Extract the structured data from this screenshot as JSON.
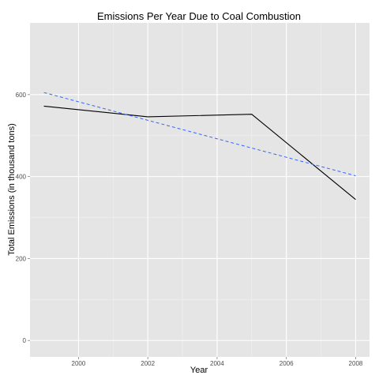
{
  "chart_data": {
    "type": "line",
    "title": "Emissions Per Year Due to Coal Combustion",
    "xlabel": "Year",
    "ylabel": "Total Emissions (in thousand tons)",
    "xlim": [
      1998.6,
      2008.4
    ],
    "ylim": [
      -40,
      775
    ],
    "x_ticks": [
      2000,
      2002,
      2004,
      2006,
      2008
    ],
    "y_ticks": [
      0,
      200,
      400,
      600
    ],
    "grid": true,
    "colors": {
      "panel_bg": "#e5e5e5",
      "grid_major": "#ffffff",
      "grid_minor": "#f2f2f2",
      "series_line": "#000000",
      "trend_line": "#3366ff"
    },
    "series": [
      {
        "x": [
          1999,
          2002,
          2005,
          2008
        ],
        "y": [
          572,
          546,
          552,
          344
        ]
      },
      {
        "style": "dashed",
        "x": [
          1999,
          2008
        ],
        "y": [
          605,
          402
        ]
      }
    ]
  }
}
